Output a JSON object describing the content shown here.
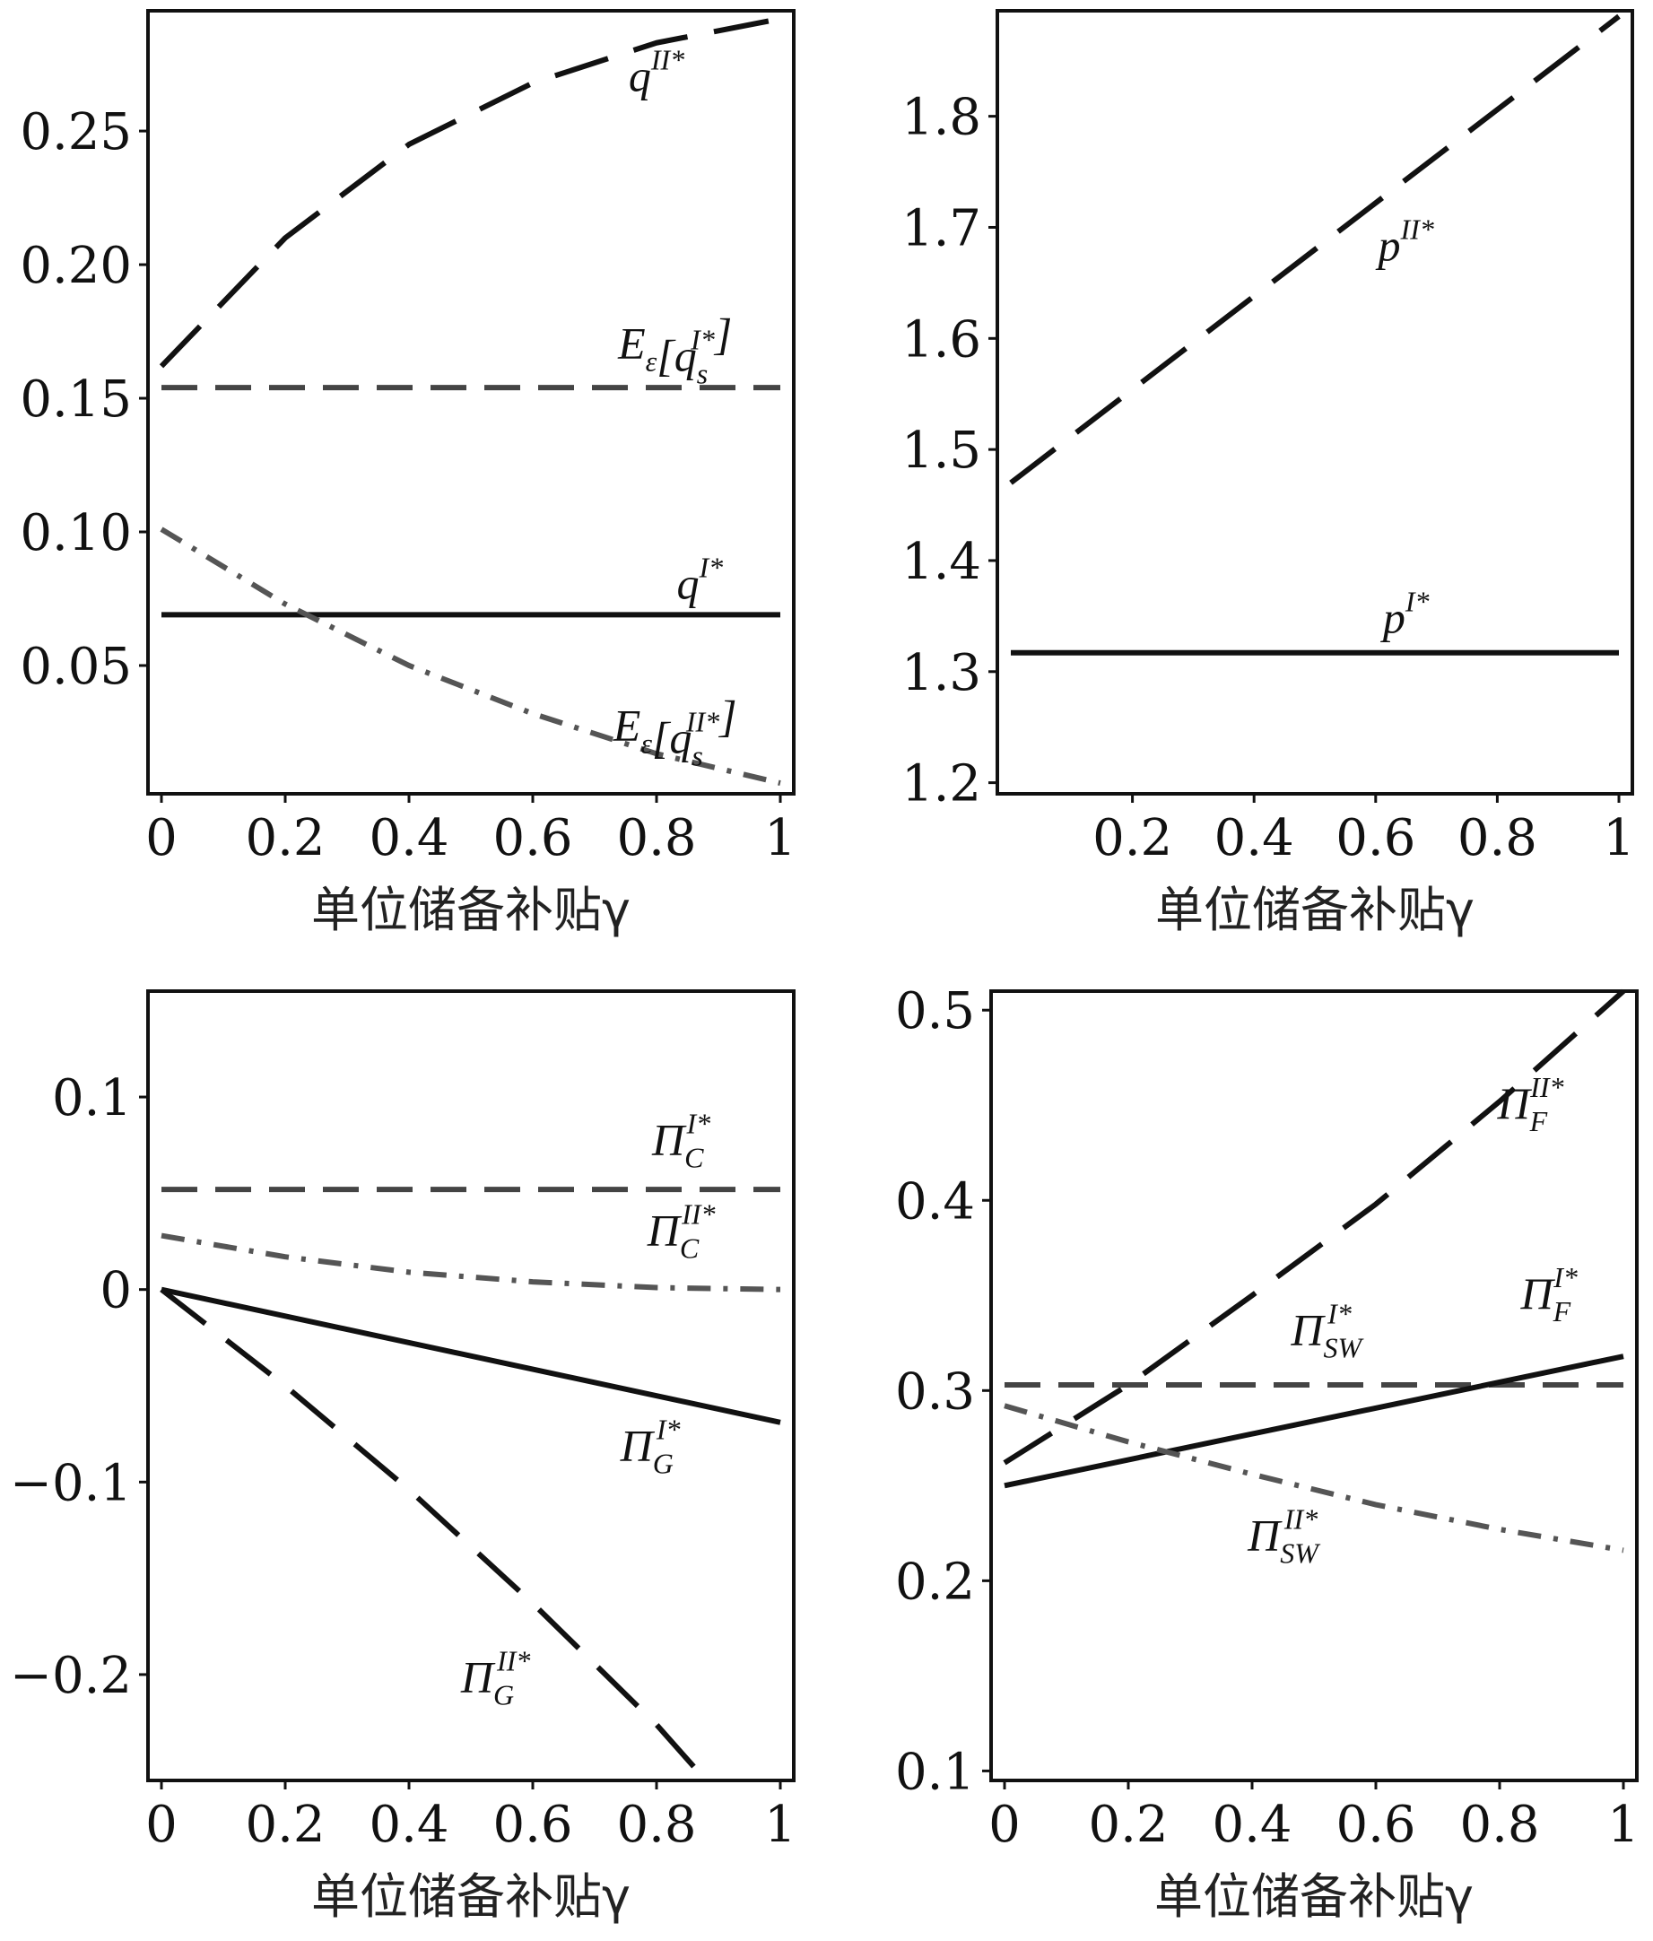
{
  "chart_data": [
    {
      "type": "line",
      "xlabel": "单位储备补贴γ",
      "xlim": [
        0,
        1
      ],
      "ylim": [
        0.002,
        0.295
      ],
      "xticks": [
        {
          "v": 0,
          "label": "0"
        },
        {
          "v": 0.2,
          "label": "0.2"
        },
        {
          "v": 0.4,
          "label": "0.4"
        },
        {
          "v": 0.6,
          "label": "0.6"
        },
        {
          "v": 0.8,
          "label": "0.8"
        },
        {
          "v": 1,
          "label": "1"
        }
      ],
      "yticks": [
        {
          "v": 0.05,
          "label": "0.05"
        },
        {
          "v": 0.1,
          "label": "0.10"
        },
        {
          "v": 0.15,
          "label": "0.15"
        },
        {
          "v": 0.2,
          "label": "0.20"
        },
        {
          "v": 0.25,
          "label": "0.25"
        }
      ],
      "series": [
        {
          "name": "q^{II*}",
          "style": "longdash",
          "color": "#111111",
          "label_at": [
            0.8,
            0.265
          ],
          "x": [
            0,
            0.2,
            0.4,
            0.6,
            0.8,
            1
          ],
          "y": [
            0.162,
            0.21,
            0.245,
            0.268,
            0.283,
            0.292
          ]
        },
        {
          "name": "E_ε[q_s^{I*}]",
          "style": "shortdash",
          "color": "#444444",
          "label_at": [
            0.83,
            0.165
          ],
          "x": [
            0,
            1
          ],
          "y": [
            0.154,
            0.154
          ]
        },
        {
          "name": "q^{I*}",
          "style": "solid",
          "color": "#111111",
          "label_at": [
            0.87,
            0.075
          ],
          "x": [
            0,
            1
          ],
          "y": [
            0.069,
            0.069
          ]
        },
        {
          "name": "E_ε[q_s^{II*}]",
          "style": "dashdot",
          "color": "#555555",
          "label_at": [
            0.83,
            0.022
          ],
          "x": [
            0,
            0.2,
            0.4,
            0.6,
            0.8,
            1
          ],
          "y": [
            0.101,
            0.073,
            0.05,
            0.032,
            0.017,
            0.006
          ]
        }
      ]
    },
    {
      "type": "line",
      "xlabel": "单位储备补贴γ",
      "xlim": [
        0,
        1
      ],
      "ylim": [
        1.19,
        1.895
      ],
      "xticks": [
        {
          "v": 0.2,
          "label": "0.2"
        },
        {
          "v": 0.4,
          "label": "0.4"
        },
        {
          "v": 0.6,
          "label": "0.6"
        },
        {
          "v": 0.8,
          "label": "0.8"
        },
        {
          "v": 1,
          "label": "1"
        }
      ],
      "yticks": [
        {
          "v": 1.2,
          "label": "1.2"
        },
        {
          "v": 1.3,
          "label": "1.3"
        },
        {
          "v": 1.4,
          "label": "1.4"
        },
        {
          "v": 1.5,
          "label": "1.5"
        },
        {
          "v": 1.6,
          "label": "1.6"
        },
        {
          "v": 1.7,
          "label": "1.7"
        },
        {
          "v": 1.8,
          "label": "1.8"
        }
      ],
      "series": [
        {
          "name": "p^{II*}",
          "style": "longdash",
          "color": "#111111",
          "label_at": [
            0.65,
            1.67
          ],
          "x": [
            0,
            1
          ],
          "y": [
            1.47,
            1.89
          ]
        },
        {
          "name": "p^{I*}",
          "style": "solid",
          "color": "#111111",
          "label_at": [
            0.65,
            1.335
          ],
          "x": [
            0,
            1
          ],
          "y": [
            1.317,
            1.317
          ]
        }
      ]
    },
    {
      "type": "line",
      "xlabel": "单位储备补贴γ",
      "xlim": [
        0,
        1
      ],
      "ylim": [
        -0.255,
        0.155
      ],
      "xticks": [
        {
          "v": 0,
          "label": "0"
        },
        {
          "v": 0.2,
          "label": "0.2"
        },
        {
          "v": 0.4,
          "label": "0.4"
        },
        {
          "v": 0.6,
          "label": "0.6"
        },
        {
          "v": 0.8,
          "label": "0.8"
        },
        {
          "v": 1,
          "label": "1"
        }
      ],
      "yticks": [
        {
          "v": -0.2,
          "label": "−0.2"
        },
        {
          "v": -0.1,
          "label": "−0.1"
        },
        {
          "v": 0,
          "label": "0"
        },
        {
          "v": 0.1,
          "label": "0.1"
        }
      ],
      "series": [
        {
          "name": "Π_C^{I*}",
          "style": "shortdash",
          "color": "#444444",
          "label_at": [
            0.84,
            0.07
          ],
          "x": [
            0,
            1
          ],
          "y": [
            0.052,
            0.052
          ]
        },
        {
          "name": "Π_C^{II*}",
          "style": "dashdot",
          "color": "#555555",
          "label_at": [
            0.84,
            0.023
          ],
          "x": [
            0,
            0.2,
            0.4,
            0.6,
            0.8,
            1
          ],
          "y": [
            0.028,
            0.017,
            0.009,
            0.004,
            0.001,
            0.0
          ]
        },
        {
          "name": "Π_G^{I*}",
          "style": "solid",
          "color": "#111111",
          "label_at": [
            0.79,
            -0.089
          ],
          "x": [
            0,
            1
          ],
          "y": [
            0.0,
            -0.069
          ]
        },
        {
          "name": "Π_G^{II*}",
          "style": "longdash",
          "color": "#111111",
          "label_at": [
            0.54,
            -0.209
          ],
          "x": [
            0,
            0.2,
            0.4,
            0.6,
            0.8,
            0.88
          ],
          "y": [
            0.0,
            -0.05,
            -0.104,
            -0.163,
            -0.226,
            -0.255
          ]
        }
      ]
    },
    {
      "type": "line",
      "xlabel": "单位储备补贴γ",
      "xlim": [
        0,
        1
      ],
      "ylim": [
        0.095,
        0.51
      ],
      "xticks": [
        {
          "v": 0,
          "label": "0"
        },
        {
          "v": 0.2,
          "label": "0.2"
        },
        {
          "v": 0.4,
          "label": "0.4"
        },
        {
          "v": 0.6,
          "label": "0.6"
        },
        {
          "v": 0.8,
          "label": "0.8"
        },
        {
          "v": 1,
          "label": "1"
        }
      ],
      "yticks": [
        {
          "v": 0.1,
          "label": "0.1"
        },
        {
          "v": 0.2,
          "label": "0.2"
        },
        {
          "v": 0.3,
          "label": "0.3"
        },
        {
          "v": 0.4,
          "label": "0.4"
        },
        {
          "v": 0.5,
          "label": "0.5"
        }
      ],
      "series": [
        {
          "name": "Π_F^{II*}",
          "style": "longdash",
          "color": "#111111",
          "label_at": [
            0.85,
            0.443
          ],
          "x": [
            0,
            0.2,
            0.4,
            0.6,
            0.8,
            1
          ],
          "y": [
            0.262,
            0.303,
            0.35,
            0.398,
            0.452,
            0.51
          ]
        },
        {
          "name": "Π_{SW}^{I*}",
          "style": "shortdash",
          "color": "#444444",
          "label_at": [
            0.52,
            0.324
          ],
          "x": [
            0,
            1
          ],
          "y": [
            0.303,
            0.303
          ]
        },
        {
          "name": "Π_F^{I*}",
          "style": "solid",
          "color": "#111111",
          "label_at": [
            0.88,
            0.343
          ],
          "x": [
            0,
            1
          ],
          "y": [
            0.25,
            0.318
          ]
        },
        {
          "name": "Π_{SW}^{II*}",
          "style": "dashdot",
          "color": "#555555",
          "label_at": [
            0.45,
            0.216
          ],
          "x": [
            0,
            0.2,
            0.4,
            0.6,
            0.8,
            1
          ],
          "y": [
            0.292,
            0.273,
            0.256,
            0.24,
            0.227,
            0.216
          ]
        }
      ]
    }
  ]
}
